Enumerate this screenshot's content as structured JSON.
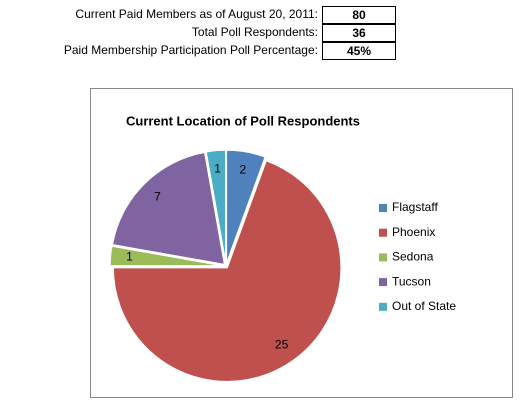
{
  "summary": {
    "rows": [
      {
        "label": "Current Paid Members as of August 20, 2011:",
        "value": "80"
      },
      {
        "label": "Total Poll Respondents:",
        "value": "36"
      },
      {
        "label": "Paid Membership Participation Poll Percentage:",
        "value": "45%"
      }
    ]
  },
  "chart_data": {
    "type": "pie",
    "title": "Current Location of Poll Respondents",
    "categories": [
      "Flagstaff",
      "Phoenix",
      "Sedona",
      "Tucson",
      "Out of State"
    ],
    "values": [
      2,
      25,
      1,
      7,
      1
    ],
    "colors": [
      "#4f81bd",
      "#c0504d",
      "#9bbb59",
      "#8064a2",
      "#4bacc6"
    ],
    "legend": "right"
  }
}
